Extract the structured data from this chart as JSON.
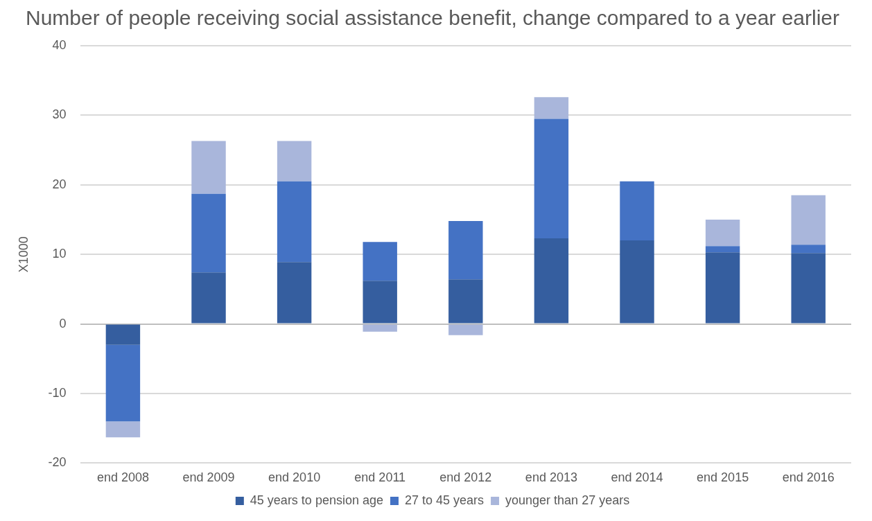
{
  "chart_data": {
    "type": "bar",
    "title": "Number of people receiving social assistance benefit, change compared to a year earlier",
    "ylabel": "X1000",
    "categories": [
      "end 2008",
      "end 2009",
      "end 2010",
      "end 2011",
      "end 2012",
      "end 2013",
      "end 2014",
      "end 2015",
      "end 2016"
    ],
    "stacked": true,
    "ylim": [
      -20,
      40
    ],
    "yticks": [
      -20,
      -10,
      0,
      10,
      20,
      30,
      40
    ],
    "grid": "y",
    "legend": "bottom",
    "series": [
      {
        "name": "45 years to pension age",
        "color": "#355e9f",
        "values": [
          -3.0,
          7.4,
          8.9,
          6.2,
          6.4,
          12.3,
          12.0,
          10.3,
          10.2
        ]
      },
      {
        "name": "27 to 45 years",
        "color": "#4472c4",
        "values": [
          -11.0,
          11.3,
          11.6,
          5.6,
          8.4,
          17.2,
          8.5,
          0.9,
          1.2
        ]
      },
      {
        "name": "younger than 27 years",
        "color": "#a9b6db",
        "values": [
          -2.3,
          7.6,
          5.8,
          -1.1,
          -1.6,
          3.1,
          0,
          3.8,
          7.1
        ]
      }
    ]
  }
}
